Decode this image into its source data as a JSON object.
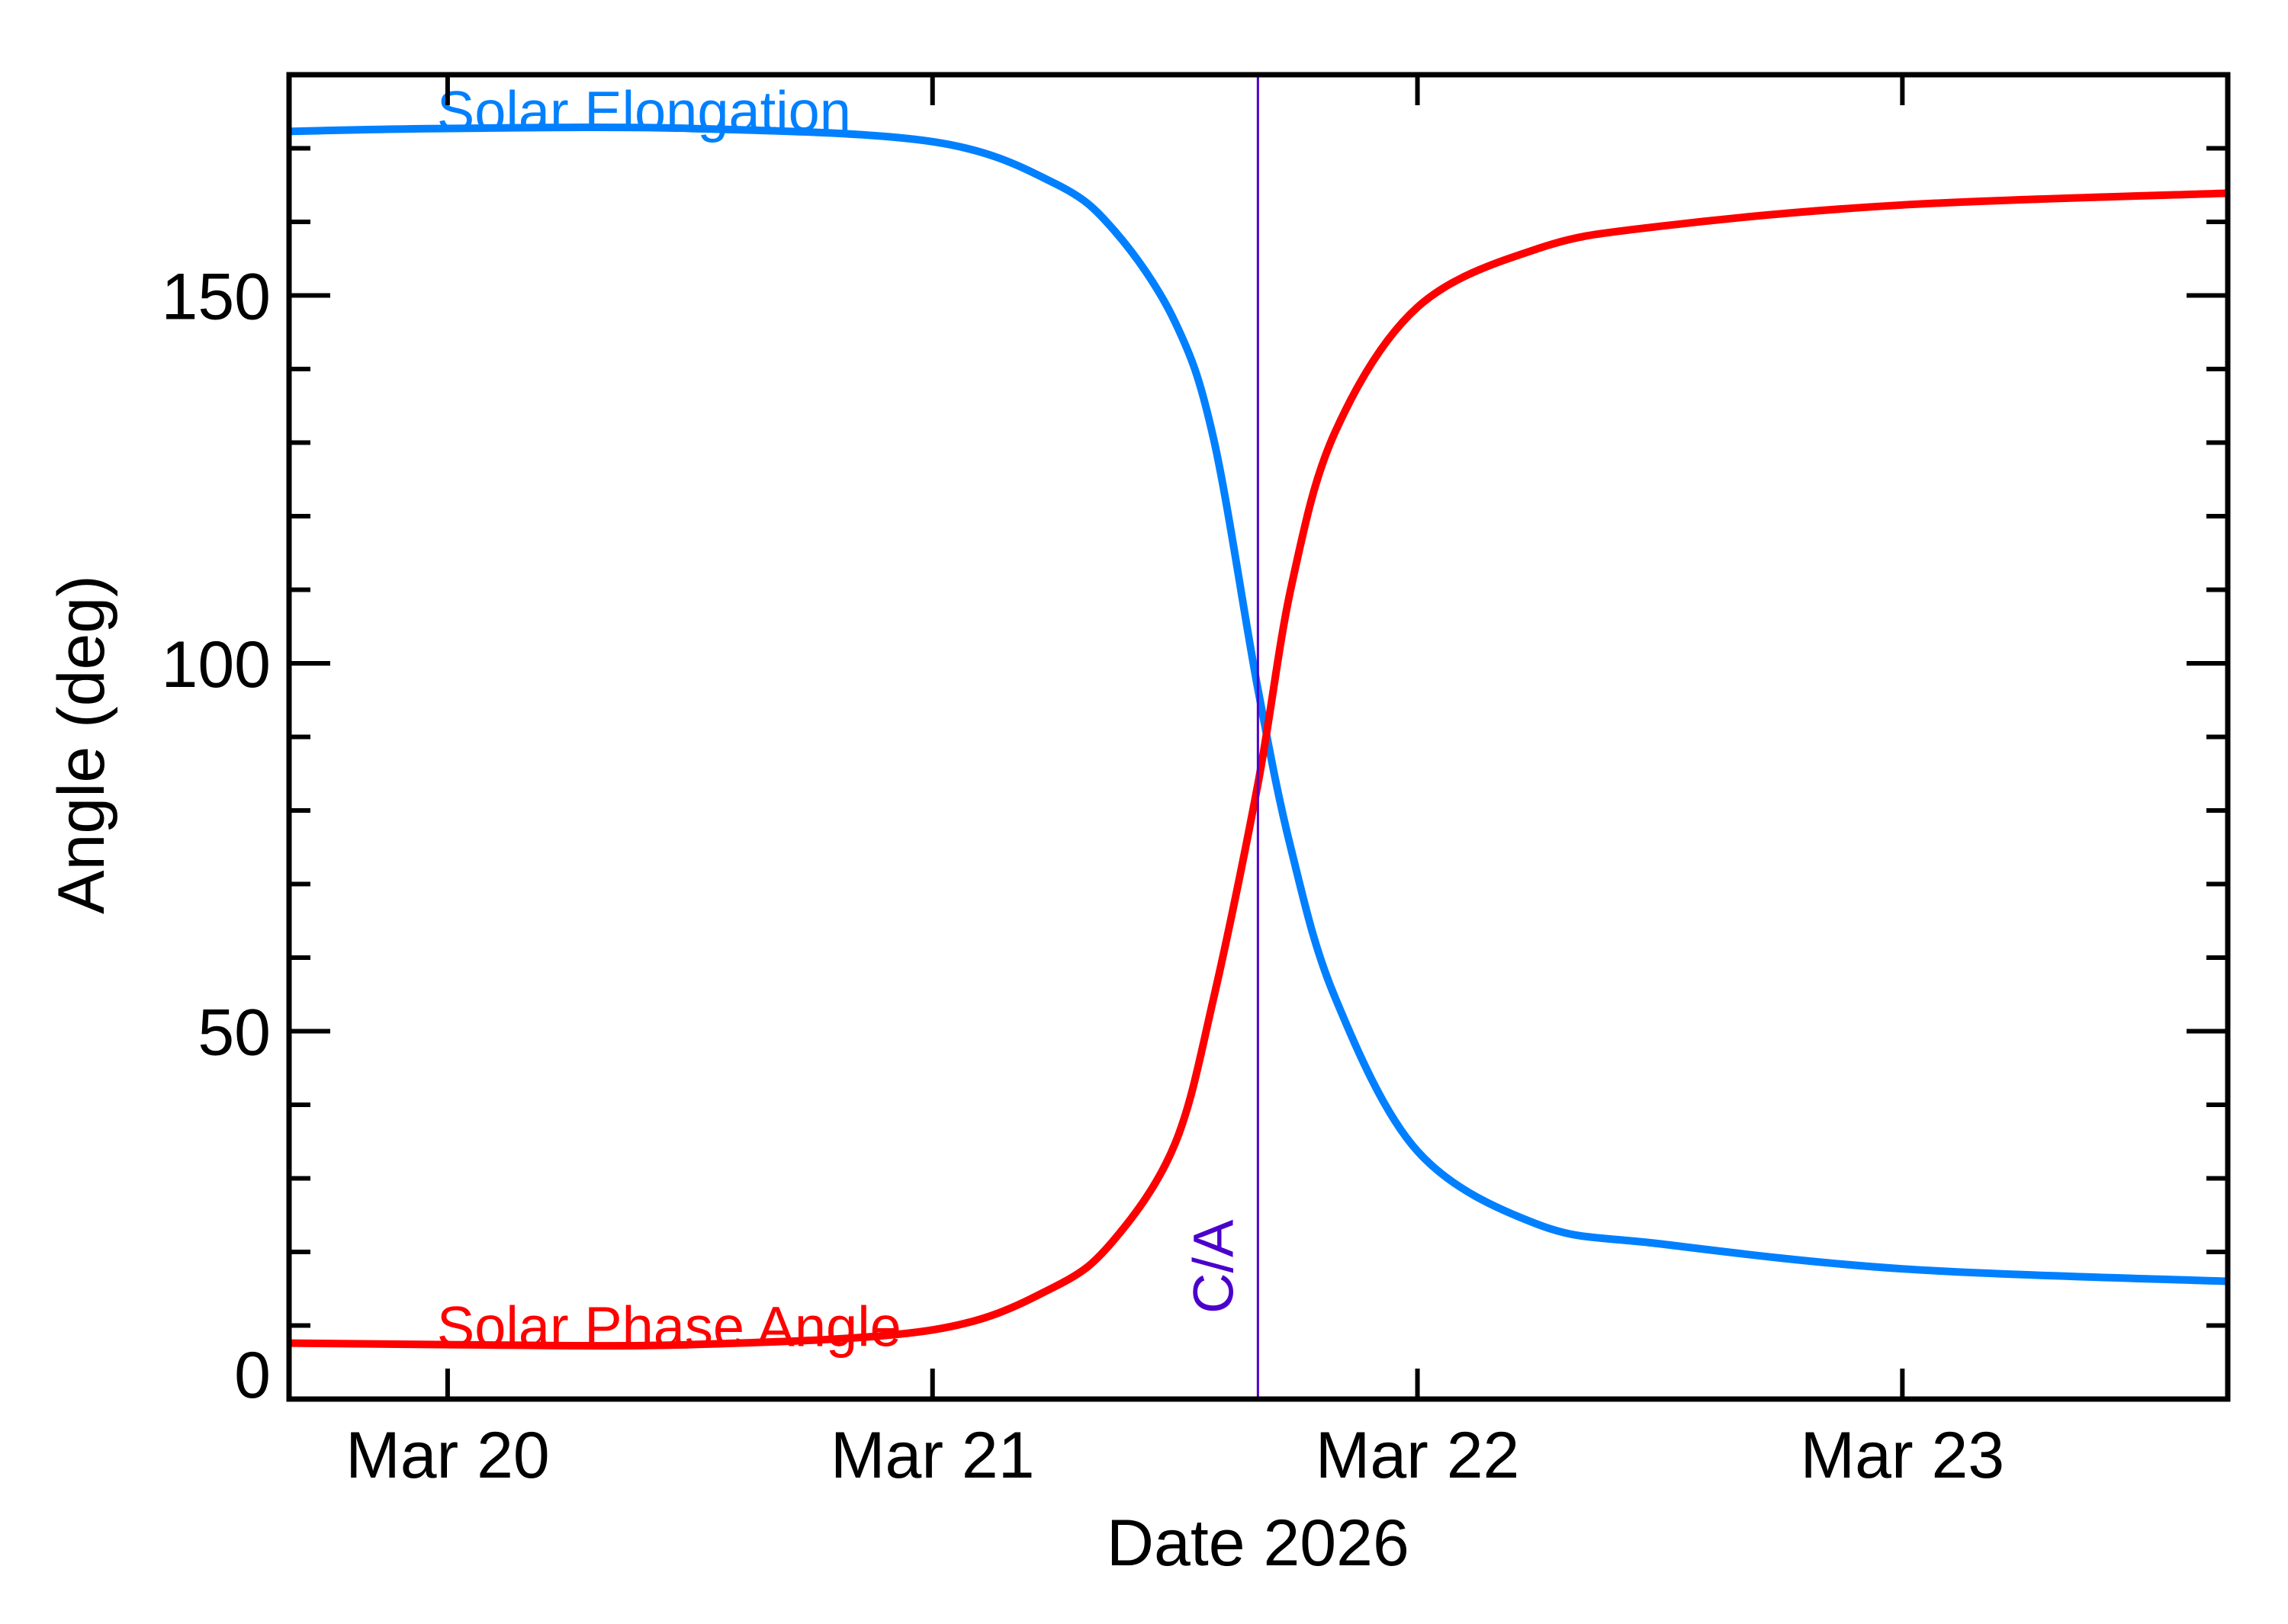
{
  "chart_data": {
    "type": "line",
    "title": "",
    "xlabel": "Date 2026",
    "ylabel": "Angle (deg)",
    "x_unit": "days since Mar 20 2026 00:00",
    "xlim": [
      -0.327,
      3.671
    ],
    "ylim": [
      0,
      180
    ],
    "grid": false,
    "legend_position": "inline labels on curves",
    "x_ticks": [
      {
        "value": 0,
        "label": "Mar 20"
      },
      {
        "value": 1,
        "label": "Mar 21"
      },
      {
        "value": 2,
        "label": "Mar 22"
      },
      {
        "value": 3,
        "label": "Mar 23"
      }
    ],
    "y_ticks_major": [
      {
        "value": 0,
        "label": "0"
      },
      {
        "value": 50,
        "label": "50"
      },
      {
        "value": 100,
        "label": "100"
      },
      {
        "value": 150,
        "label": "150"
      }
    ],
    "y_ticks_minor_step": 10,
    "x": [
      -0.327,
      0.0,
      0.5,
      1.0,
      1.25,
      1.375,
      1.5,
      1.58,
      1.671,
      1.74,
      1.83,
      2.0,
      2.25,
      2.5,
      3.0,
      3.671
    ],
    "series": [
      {
        "name": "Solar Elongation",
        "color": "#0080ff",
        "values": [
          172.3,
          172.7,
          172.7,
          170.9,
          165.3,
          158.8,
          146.4,
          130.4,
          96.5,
          74.6,
          54.6,
          33.7,
          23.7,
          21.1,
          17.7,
          16.0
        ]
      },
      {
        "name": "Solar Phase Angle",
        "color": "#ff0000",
        "values": [
          7.6,
          7.4,
          7.4,
          9.4,
          15.2,
          21.7,
          34.7,
          54.6,
          83.6,
          110.5,
          131.4,
          148.4,
          156.4,
          159.4,
          162.3,
          163.9
        ]
      }
    ],
    "annotations": [
      {
        "type": "vertical_line",
        "x": 1.671,
        "label": "C/A",
        "color": "#4b00cc"
      },
      {
        "type": "text",
        "text": "Solar Elongation",
        "color": "#0080ff",
        "x": -0.022,
        "y": 172.6
      },
      {
        "type": "text",
        "text": "Solar Phase Angle",
        "color": "#ff0000",
        "x": -0.022,
        "y": 7.4
      }
    ]
  },
  "labels": {
    "xlabel": "Date 2026",
    "ylabel": "Angle (deg)",
    "elongation": "Solar Elongation",
    "phase": "Solar Phase Angle",
    "ca": "C/A"
  }
}
